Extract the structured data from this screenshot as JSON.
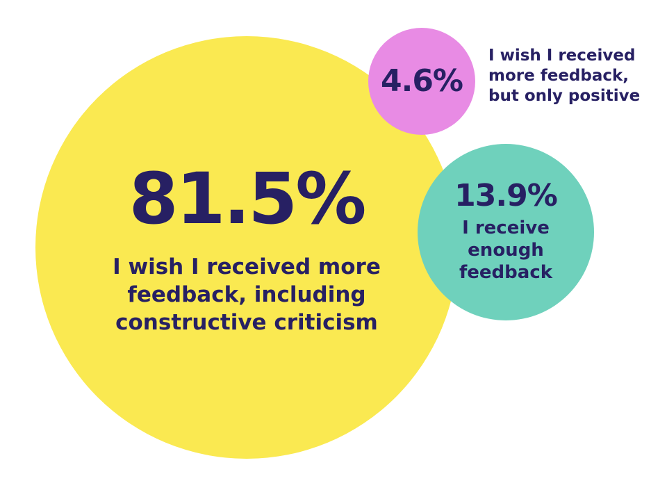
{
  "chart_data": {
    "type": "bubble",
    "title": "",
    "legend_position": "none",
    "grid": false,
    "series": [
      {
        "name": "I wish I received more feedback, including constructive criticism",
        "value": 81.5,
        "color": "#FAE951"
      },
      {
        "name": "I receive enough feedback",
        "value": 13.9,
        "color": "#6FD1BC"
      },
      {
        "name": "I wish I received more feedback, but only positive",
        "value": 4.6,
        "color": "#E88BE4"
      }
    ]
  },
  "colors": {
    "yellow": "#FAE951",
    "pink": "#E88BE4",
    "teal": "#6FD1BC",
    "navy": "#272063",
    "background": "#FFFFFF"
  },
  "bubbles": {
    "large": {
      "pct": "81.5%",
      "lines": [
        "I wish I received more",
        "feedback, including",
        "constructive criticism"
      ]
    },
    "pink": {
      "pct": "4.6%",
      "lines": [
        "I wish I received",
        "more feedback,",
        "but only positive"
      ]
    },
    "teal": {
      "pct": "13.9%",
      "lines": [
        "I receive",
        "enough",
        "feedback"
      ]
    }
  }
}
